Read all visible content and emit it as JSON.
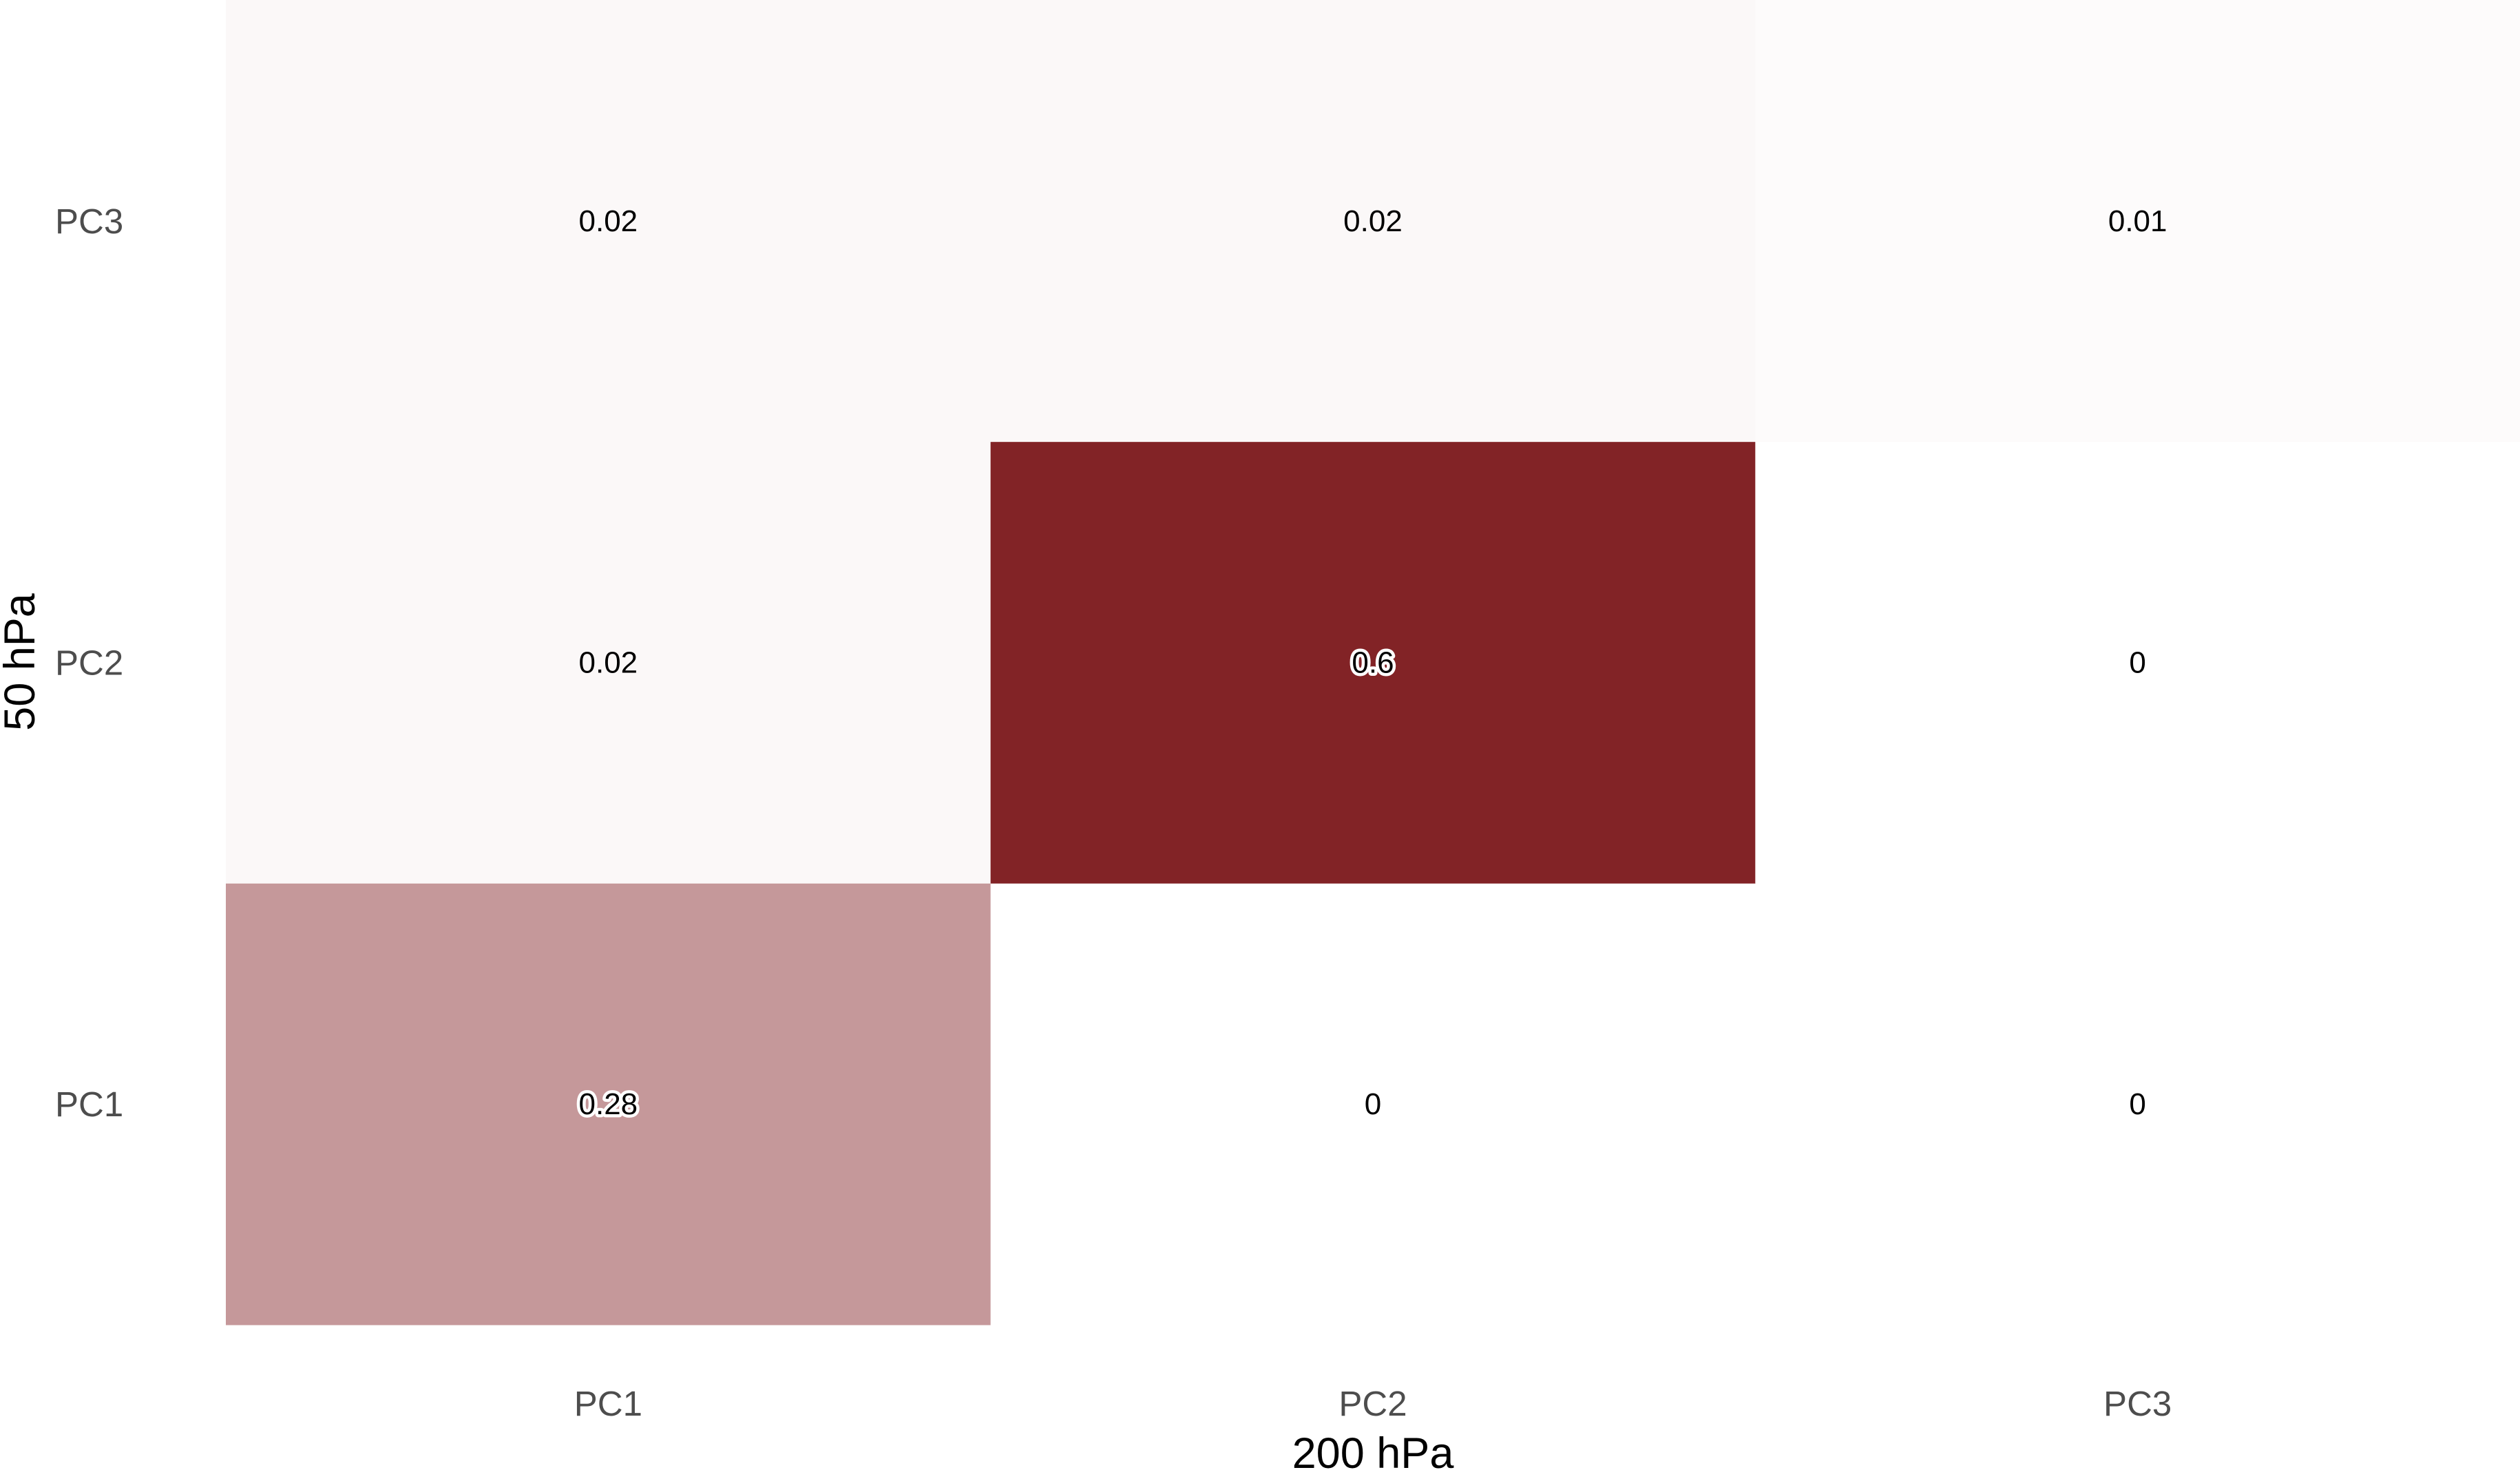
{
  "chart_data": {
    "type": "heatmap",
    "title": "",
    "xlabel": "200 hPa",
    "ylabel": "50 hPa",
    "x_categories": [
      "PC1",
      "PC2",
      "PC3"
    ],
    "y_categories": [
      "PC1",
      "PC2",
      "PC3"
    ],
    "cells": [
      {
        "x": "PC1",
        "y": "PC1",
        "value": 0.28,
        "label": "0.28"
      },
      {
        "x": "PC2",
        "y": "PC1",
        "value": 0,
        "label": "0"
      },
      {
        "x": "PC3",
        "y": "PC1",
        "value": 0,
        "label": "0"
      },
      {
        "x": "PC1",
        "y": "PC2",
        "value": 0.02,
        "label": "0.02"
      },
      {
        "x": "PC2",
        "y": "PC2",
        "value": 0.6,
        "label": "0.6"
      },
      {
        "x": "PC3",
        "y": "PC2",
        "value": 0,
        "label": "0"
      },
      {
        "x": "PC1",
        "y": "PC3",
        "value": 0.02,
        "label": "0.02"
      },
      {
        "x": "PC2",
        "y": "PC3",
        "value": 0.02,
        "label": "0.02"
      },
      {
        "x": "PC3",
        "y": "PC3",
        "value": 0.01,
        "label": "0.01"
      }
    ],
    "color_scale": {
      "low": "#ffffff",
      "high": "#822326",
      "min": 0,
      "max": 0.6
    },
    "grid": false,
    "legend": "none"
  }
}
